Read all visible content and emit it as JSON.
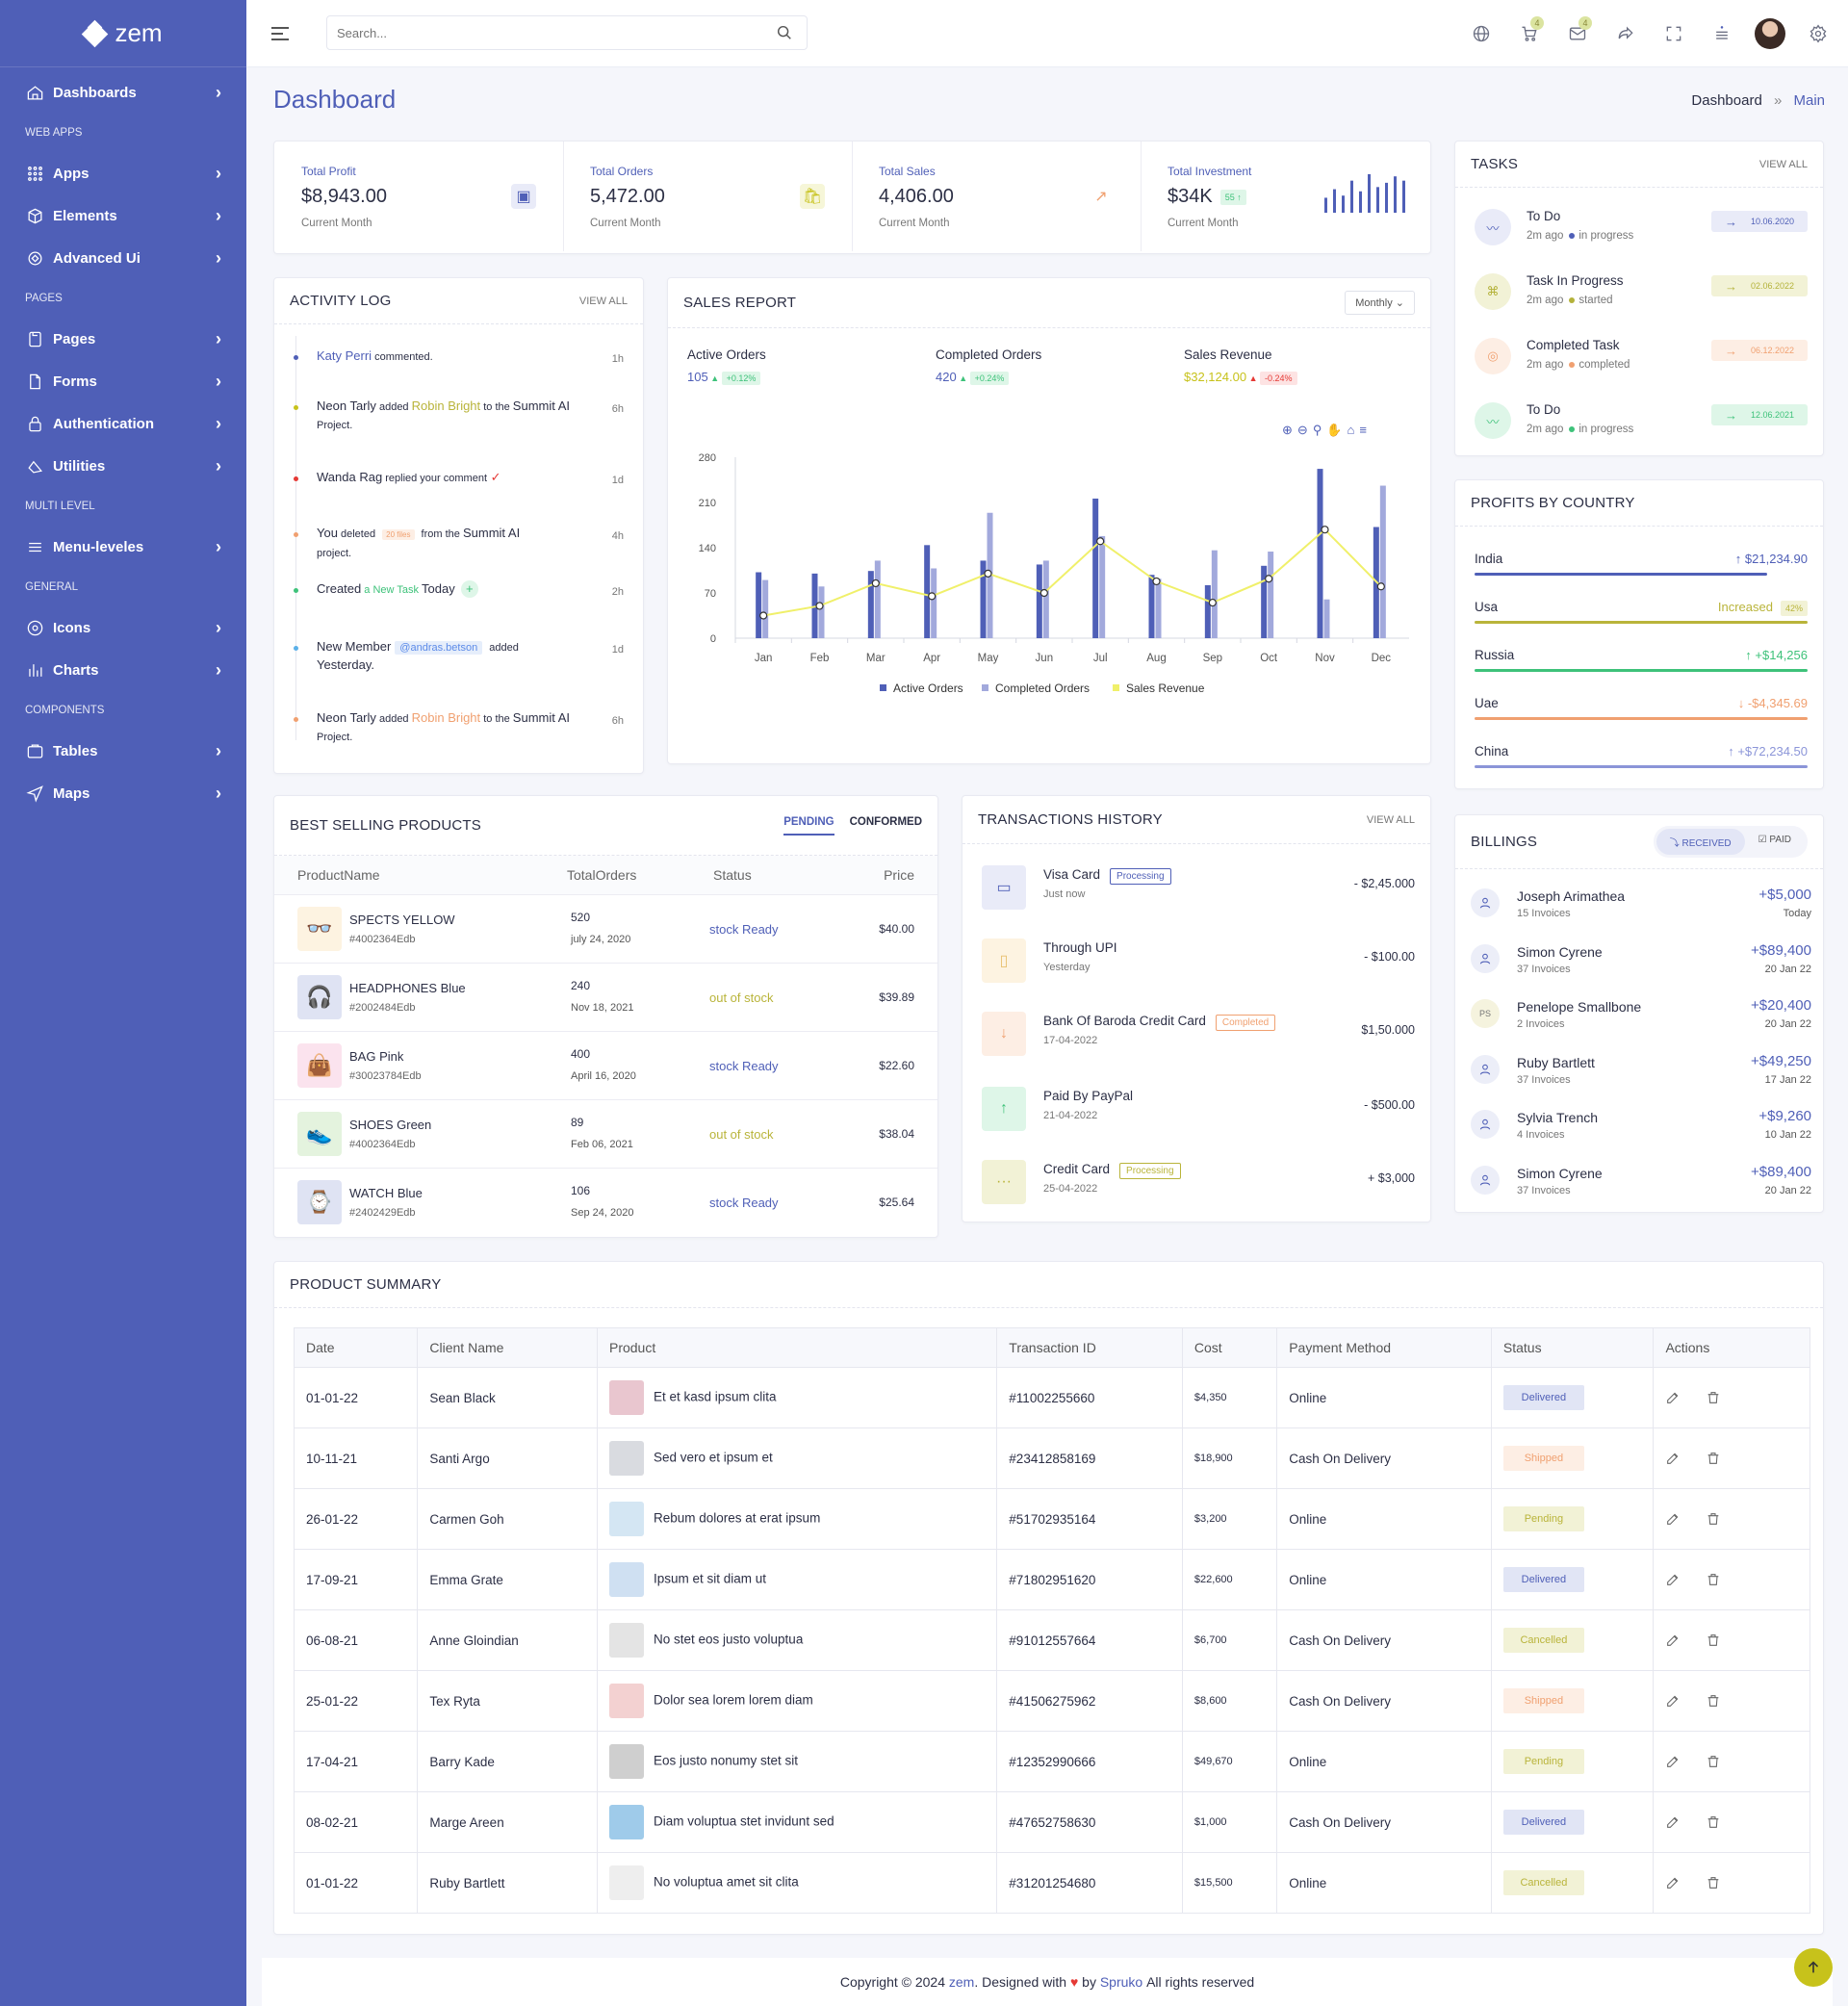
{
  "app": {
    "brand": "zem"
  },
  "sidebar": {
    "items": [
      {
        "type": "item",
        "label": "Dashboards",
        "icon": "home-icon"
      },
      {
        "type": "section",
        "label": "WEB APPS"
      },
      {
        "type": "item",
        "label": "Apps",
        "icon": "grid-icon"
      },
      {
        "type": "item",
        "label": "Elements",
        "icon": "box-icon"
      },
      {
        "type": "item",
        "label": "Advanced Ui",
        "icon": "layers-icon"
      },
      {
        "type": "section",
        "label": "PAGES"
      },
      {
        "type": "item",
        "label": "Pages",
        "icon": "pages-icon"
      },
      {
        "type": "item",
        "label": "Forms",
        "icon": "file-icon"
      },
      {
        "type": "item",
        "label": "Authentication",
        "icon": "lock-icon"
      },
      {
        "type": "item",
        "label": "Utilities",
        "icon": "utilities-icon"
      },
      {
        "type": "section",
        "label": "MULTI LEVEL"
      },
      {
        "type": "item",
        "label": "Menu-leveles",
        "icon": "menu-icon"
      },
      {
        "type": "section",
        "label": "GENERAL"
      },
      {
        "type": "item",
        "label": "Icons",
        "icon": "aperture-icon"
      },
      {
        "type": "item",
        "label": "Charts",
        "icon": "bar-chart-icon"
      },
      {
        "type": "section",
        "label": "COMPONENTS"
      },
      {
        "type": "item",
        "label": "Tables",
        "icon": "table-icon"
      },
      {
        "type": "item",
        "label": "Maps",
        "icon": "navigation-icon"
      }
    ]
  },
  "header": {
    "search_placeholder": "Search...",
    "cart_badge": "4",
    "mail_badge": "4"
  },
  "page": {
    "title": "Dashboard",
    "crumb_home": "Dashboard",
    "crumb_sep": "»",
    "crumb_current": "Main"
  },
  "stats": [
    {
      "label": "Total Profit",
      "value": "$8,943.00",
      "sub": "Current Month"
    },
    {
      "label": "Total Orders",
      "value": "5,472.00",
      "sub": "Current Month"
    },
    {
      "label": "Total Sales",
      "value": "4,406.00",
      "sub": "Current Month"
    },
    {
      "label": "Total Investment",
      "value": "$34K",
      "badge": "55",
      "sub": "Current Month",
      "spark": [
        14,
        22,
        16,
        30,
        20,
        36,
        24,
        28,
        34,
        30
      ]
    }
  ],
  "activity": {
    "title": "ACTIVITY LOG",
    "view_all": "VIEW ALL",
    "rows": [
      {
        "a": "Katy Perri",
        "b": " commented.",
        "time": "1h"
      },
      {
        "a": "Neon Tarly",
        "b": " added ",
        "c": "Robin Bright",
        "d": " to the ",
        "e": "Summit AI",
        "f": "Project.",
        "time": "6h"
      },
      {
        "a": "Wanda Rag",
        "b": " replied your comment",
        "time": "1d"
      },
      {
        "a": "You",
        "b": " deleted ",
        "c": "20 files",
        "d": " from the ",
        "e": "Summit AI",
        "f": " project.",
        "time": "4h"
      },
      {
        "a": "Created",
        "b": " a New Task ",
        "c": "Today",
        "time": "2h"
      },
      {
        "a": "New Member",
        "c": "@andras.betson",
        "d": " added",
        "f": "Yesterday.",
        "time": "1d"
      },
      {
        "a": "Neon Tarly",
        "b": " added ",
        "c": "Robin Bright",
        "d": " to the ",
        "e": "Summit AI",
        "f": "Project.",
        "time": "6h"
      }
    ]
  },
  "sales": {
    "title": "SALES REPORT",
    "period": "Monthly",
    "kpis": [
      {
        "label": "Active Orders",
        "value": "105",
        "delta": "+0.12%"
      },
      {
        "label": "Completed Orders",
        "value": "420",
        "delta": "+0.24%"
      },
      {
        "label": "Sales Revenue",
        "value": "$32,124.00",
        "delta": "-0.24%"
      }
    ]
  },
  "chart_data": {
    "type": "bar",
    "categories": [
      "Jan",
      "Feb",
      "Mar",
      "Apr",
      "May",
      "Jun",
      "Jul",
      "Aug",
      "Sep",
      "Oct",
      "Nov",
      "Dec"
    ],
    "series": [
      {
        "name": "Active Orders",
        "type": "bar",
        "values": [
          102,
          100,
          104,
          144,
          120,
          114,
          216,
          98,
          82,
          112,
          262,
          172
        ],
        "color": "#4f5fb7"
      },
      {
        "name": "Completed Orders",
        "type": "bar",
        "values": [
          90,
          80,
          120,
          108,
          194,
          120,
          158,
          92,
          136,
          134,
          60,
          236
        ],
        "color": "#a2a9dc"
      },
      {
        "name": "Sales Revenue",
        "type": "line",
        "values": [
          35,
          50,
          85,
          65,
          100,
          70,
          150,
          88,
          55,
          92,
          168,
          80
        ],
        "color": "#f0f06a"
      }
    ],
    "ylim": [
      0,
      280
    ],
    "yticks": [
      0,
      70,
      140,
      210,
      280
    ],
    "legend": "bottom",
    "grid": false
  },
  "tasks": {
    "title": "TASKS",
    "view_all": "VIEW ALL",
    "items": [
      {
        "title": "To Do",
        "ago": "2m ago",
        "status": "in progress",
        "date": "10.06.2020",
        "color": "#4f5fb7",
        "bg": "#e9ebf8"
      },
      {
        "title": "Task In Progress",
        "ago": "2m ago",
        "status": "started",
        "date": "02.06.2022",
        "color": "#b4b23a",
        "bg": "#f2f2d6"
      },
      {
        "title": "Completed Task",
        "ago": "2m ago",
        "status": "completed",
        "date": "06.12.2022",
        "color": "#f0a070",
        "bg": "#fdeee4"
      },
      {
        "title": "To Do",
        "ago": "2m ago",
        "status": "in progress",
        "date": "12.06.2021",
        "color": "#3ec27a",
        "bg": "#def6e8"
      }
    ]
  },
  "profits": {
    "title": "PROFITS BY COUNTRY",
    "items": [
      {
        "name": "India",
        "value": "$21,234.90",
        "arrow": "↑",
        "color": "#4f5fb7",
        "bar": 0.88
      },
      {
        "name": "Usa",
        "value": "Increased",
        "badge": "42%",
        "color": "#b9b43a",
        "bar": 1.0
      },
      {
        "name": "Russia",
        "value": "+$14,256",
        "arrow": "↑",
        "color": "#3ec27a",
        "bar": 1.0
      },
      {
        "name": "Uae",
        "value": "-$4,345.69",
        "arrow": "↓",
        "color": "#f0a070",
        "bar": 1.0
      },
      {
        "name": "China",
        "value": "+$72,234.50",
        "arrow": "↑",
        "color": "#8b95d8",
        "bar": 1.0
      }
    ]
  },
  "billings": {
    "title": "BILLINGS",
    "tab_received": "RECEIVED",
    "tab_paid": "PAID",
    "items": [
      {
        "name": "Joseph Arimathea",
        "invoices": "15 Invoices",
        "amount": "+$5,000",
        "date": "Today",
        "initials": ""
      },
      {
        "name": "Simon Cyrene",
        "invoices": "37 Invoices",
        "amount": "+$89,400",
        "date": "20 Jan 22",
        "initials": ""
      },
      {
        "name": "Penelope Smallbone",
        "invoices": "2 Invoices",
        "amount": "+$20,400",
        "date": "20 Jan 22",
        "initials": "PS"
      },
      {
        "name": "Ruby Bartlett",
        "invoices": "37 Invoices",
        "amount": "+$49,250",
        "date": "17 Jan 22",
        "initials": ""
      },
      {
        "name": "Sylvia Trench",
        "invoices": "4 Invoices",
        "amount": "+$9,260",
        "date": "10 Jan 22",
        "initials": ""
      },
      {
        "name": "Simon Cyrene",
        "invoices": "37 Invoices",
        "amount": "+$89,400",
        "date": "20 Jan 22",
        "initials": ""
      }
    ]
  },
  "best": {
    "title": "BEST SELLING PRODUCTS",
    "tab_pending": "PENDING",
    "tab_conformed": "CONFORMED",
    "cols": [
      "ProductName",
      "TotalOrders",
      "Status",
      "Price"
    ],
    "rows": [
      {
        "name": "SPECTS YELLOW",
        "sku": "#4002364Edb",
        "orders": "520",
        "date": "july 24, 2020",
        "status": "stock Ready",
        "ok": true,
        "price": "$40.00",
        "bg": "#fdf3e1",
        "glyph": "👓"
      },
      {
        "name": "HEADPHONES Blue",
        "sku": "#2002484Edb",
        "orders": "240",
        "date": "Nov 18, 2021",
        "status": "out of stock",
        "ok": false,
        "price": "$39.89",
        "bg": "#dfe3f3",
        "glyph": "🎧"
      },
      {
        "name": "BAG Pink",
        "sku": "#30023784Edb",
        "orders": "400",
        "date": "April 16, 2020",
        "status": "stock Ready",
        "ok": true,
        "price": "$22.60",
        "bg": "#fbe3ee",
        "glyph": "👜"
      },
      {
        "name": "SHOES Green",
        "sku": "#4002364Edb",
        "orders": "89",
        "date": "Feb 06, 2021",
        "status": "out of stock",
        "ok": false,
        "price": "$38.04",
        "bg": "#e4f3de",
        "glyph": "👟"
      },
      {
        "name": "WATCH Blue",
        "sku": "#2402429Edb",
        "orders": "106",
        "date": "Sep 24, 2020",
        "status": "stock Ready",
        "ok": true,
        "price": "$25.64",
        "bg": "#dfe3f3",
        "glyph": "⌚"
      }
    ]
  },
  "transactions": {
    "title": "TRANSACTIONS HISTORY",
    "view_all": "VIEW ALL",
    "items": [
      {
        "name": "Visa Card",
        "sub": "Just now",
        "amount": "- $2,45.000",
        "pill": "Processing",
        "pill_color": "#4f5fb7",
        "bg": "#e9ebf8",
        "glyph": "▭",
        "gcolor": "#4f5fb7"
      },
      {
        "name": "Through UPI",
        "sub": "Yesterday",
        "amount": "- $100.00",
        "pill": "",
        "pill_color": "",
        "bg": "#fdf3e1",
        "glyph": "▯",
        "gcolor": "#e8c070"
      },
      {
        "name": "Bank Of Baroda Credit Card",
        "sub": "17-04-2022",
        "amount": "$1,50.000",
        "pill": "Completed",
        "pill_color": "#f0a070",
        "bg": "#fdeee4",
        "glyph": "↓",
        "gcolor": "#f0a070"
      },
      {
        "name": "Paid By PayPal",
        "sub": "21-04-2022",
        "amount": "- $500.00",
        "pill": "",
        "pill_color": "",
        "bg": "#def6e8",
        "glyph": "↑",
        "gcolor": "#3ec27a"
      },
      {
        "name": "Credit Card",
        "sub": "25-04-2022",
        "amount": "+ $3,000",
        "pill": "Processing",
        "pill_color": "#b9b43a",
        "bg": "#f2f2d6",
        "glyph": "···",
        "gcolor": "#b9b43a"
      }
    ]
  },
  "summary": {
    "title": "PRODUCT SUMMARY",
    "cols": [
      "Date",
      "Client Name",
      "Product",
      "Transaction ID",
      "Cost",
      "Payment Method",
      "Status",
      "Actions"
    ],
    "rows": [
      {
        "date": "01-01-22",
        "client": "Sean Black",
        "product": "Et et kasd ipsum clita",
        "tid": "#11002255660",
        "cost": "$4,350",
        "method": "Online",
        "status": "Delivered",
        "thumb": "#e9c6cf"
      },
      {
        "date": "10-11-21",
        "client": "Santi Argo",
        "product": "Sed vero et ipsum et",
        "tid": "#23412858169",
        "cost": "$18,900",
        "method": "Cash On Delivery",
        "status": "Shipped",
        "thumb": "#d9dbe0"
      },
      {
        "date": "26-01-22",
        "client": "Carmen Goh",
        "product": "Rebum dolores at erat ipsum",
        "tid": "#51702935164",
        "cost": "$3,200",
        "method": "Online",
        "status": "Pending",
        "thumb": "#d4e6f3"
      },
      {
        "date": "17-09-21",
        "client": "Emma Grate",
        "product": "Ipsum et sit diam ut",
        "tid": "#71802951620",
        "cost": "$22,600",
        "method": "Online",
        "status": "Delivered",
        "thumb": "#cfe0f2"
      },
      {
        "date": "06-08-21",
        "client": "Anne Gloindian",
        "product": "No stet eos justo voluptua",
        "tid": "#91012557664",
        "cost": "$6,700",
        "method": "Cash On Delivery",
        "status": "Cancelled",
        "thumb": "#e4e4e4"
      },
      {
        "date": "25-01-22",
        "client": "Tex Ryta",
        "product": "Dolor sea lorem lorem diam",
        "tid": "#41506275962",
        "cost": "$8,600",
        "method": "Cash On Delivery",
        "status": "Shipped",
        "thumb": "#f3d1d1"
      },
      {
        "date": "17-04-21",
        "client": "Barry Kade",
        "product": "Eos justo nonumy stet sit",
        "tid": "#12352990666",
        "cost": "$49,670",
        "method": "Online",
        "status": "Pending",
        "thumb": "#cfcfcf"
      },
      {
        "date": "08-02-21",
        "client": "Marge Areen",
        "product": "Diam voluptua stet invidunt sed",
        "tid": "#47652758630",
        "cost": "$1,000",
        "method": "Cash On Delivery",
        "status": "Delivered",
        "thumb": "#9fcbea"
      },
      {
        "date": "01-01-22",
        "client": "Ruby Bartlett",
        "product": "No voluptua amet sit clita",
        "tid": "#31201254680",
        "cost": "$15,500",
        "method": "Online",
        "status": "Cancelled",
        "thumb": "#eeeeee"
      }
    ]
  },
  "footer": {
    "pre": "Copyright © 2024 ",
    "brand": "zem",
    "mid": ". Designed with ",
    "by": " by ",
    "author": "Spruko",
    "post": " All rights reserved"
  }
}
